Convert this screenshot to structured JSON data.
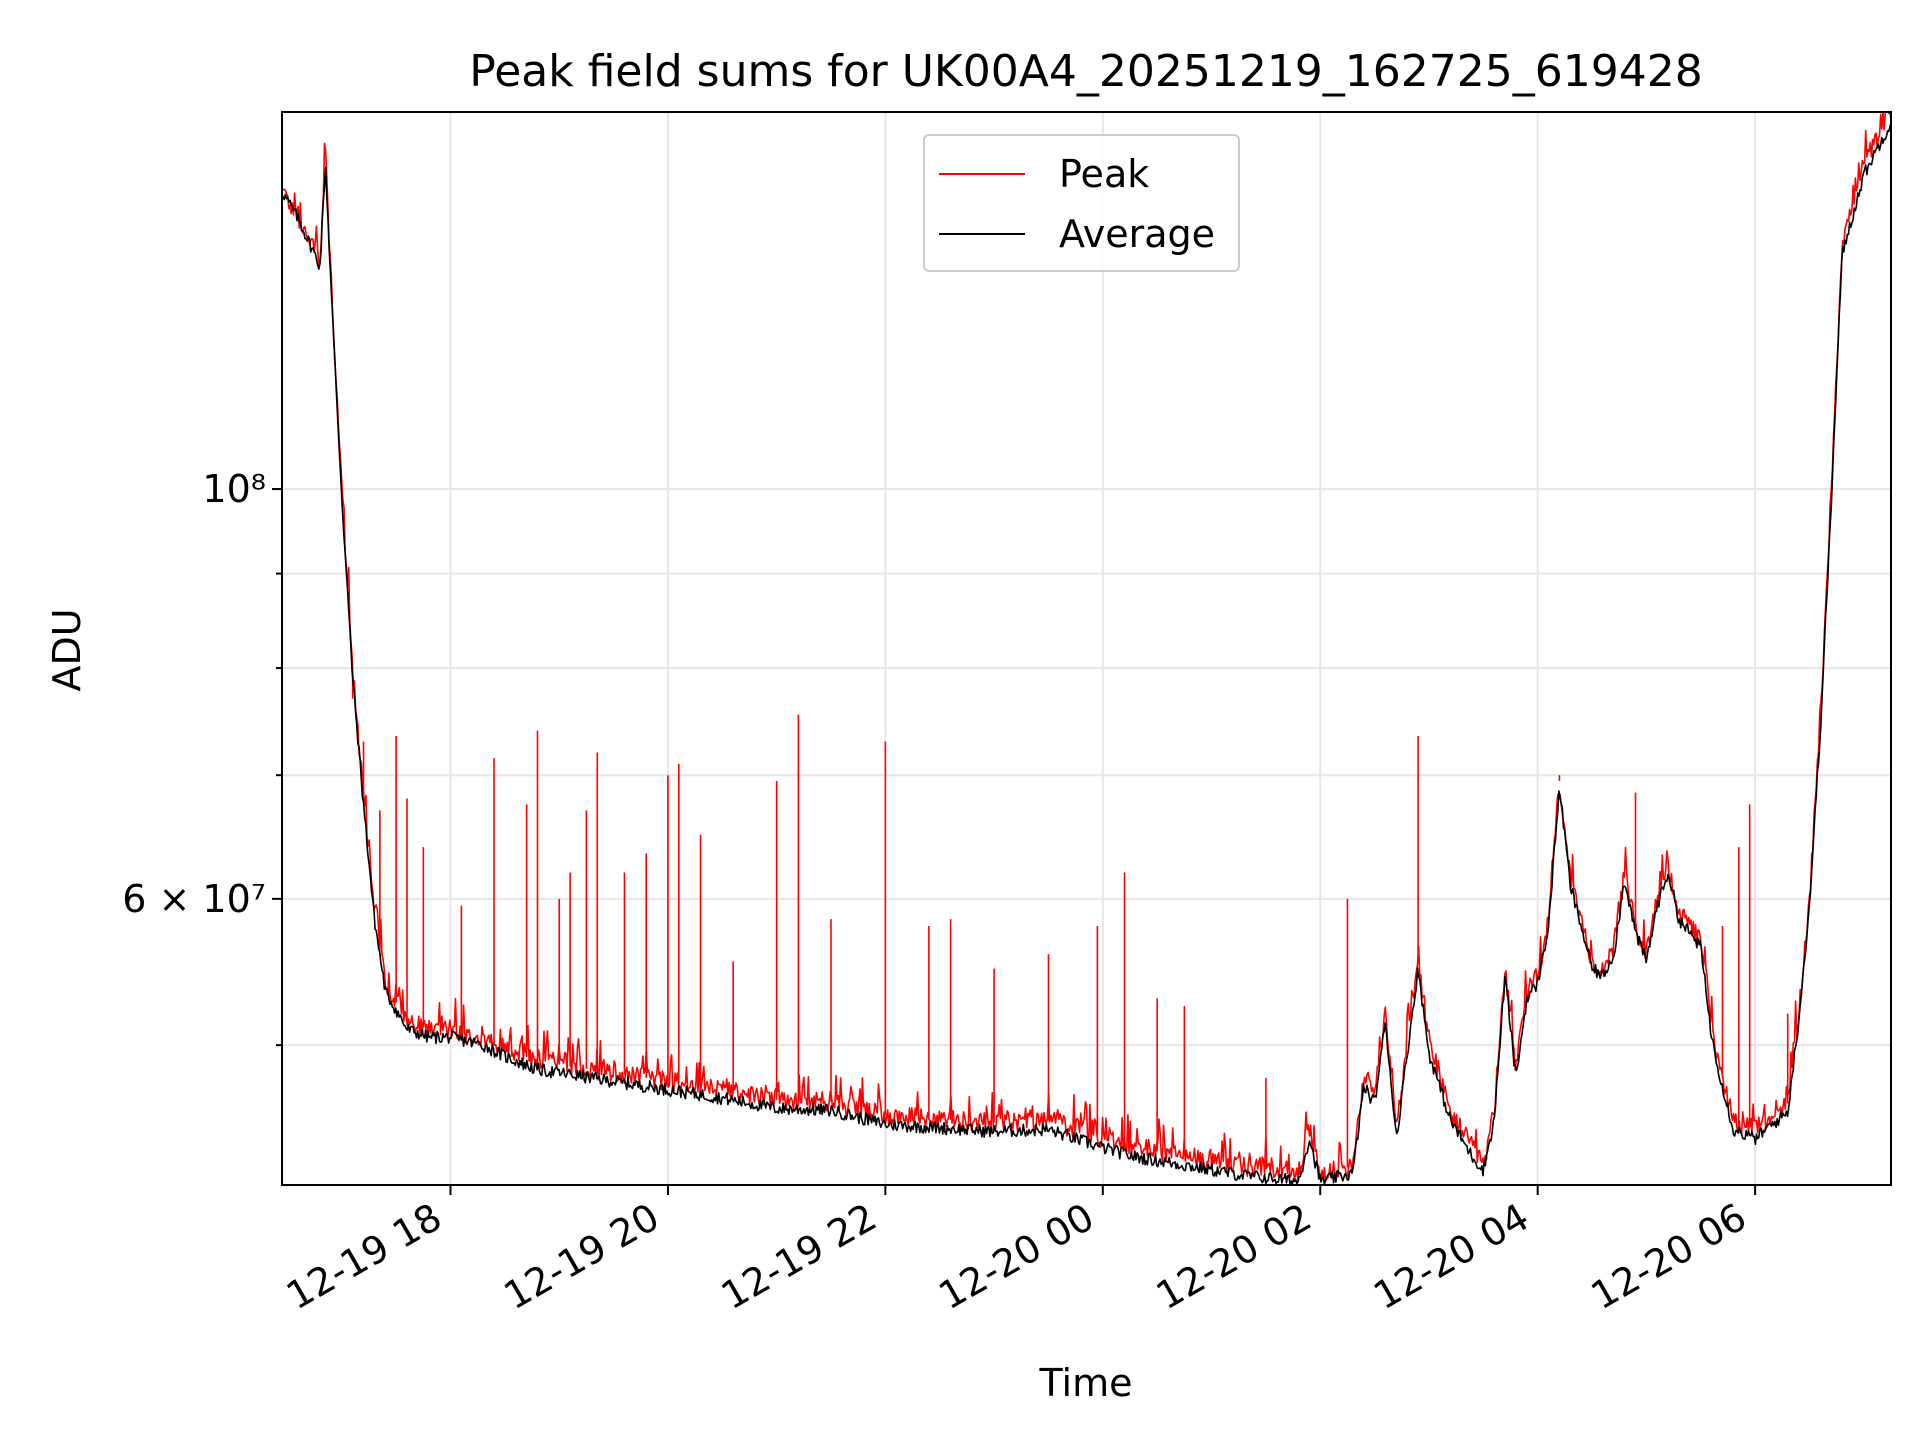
{
  "chart_data": {
    "type": "line",
    "title": "Peak field sums for UK00A4_20251219_162725_619428",
    "xlabel": "Time",
    "ylabel": "ADU",
    "yscale": "log",
    "ylim": [
      42000000,
      160000000
    ],
    "xlim_hours": [
      16.45,
      31.25
    ],
    "grid": true,
    "legend_position": "upper-center",
    "x_ticks": [
      {
        "hour": 18,
        "label": "12-19 18"
      },
      {
        "hour": 20,
        "label": "12-19 20"
      },
      {
        "hour": 22,
        "label": "12-19 22"
      },
      {
        "hour": 24,
        "label": "12-20 00"
      },
      {
        "hour": 26,
        "label": "12-20 02"
      },
      {
        "hour": 28,
        "label": "12-20 04"
      },
      {
        "hour": 30,
        "label": "12-20 06"
      }
    ],
    "y_major_ticks": [
      {
        "value": 60000000,
        "label": "6 × 10⁷"
      },
      {
        "value": 100000000,
        "label": "10⁸"
      }
    ],
    "y_minor_ticks": [
      50000000,
      70000000,
      80000000,
      90000000
    ],
    "series": [
      {
        "name": "Peak",
        "color": "#ff0000",
        "baseline": [
          [
            16.45,
            145000000
          ],
          [
            16.6,
            140000000
          ],
          [
            16.75,
            135000000
          ],
          [
            16.8,
            133000000
          ],
          [
            16.85,
            153000000
          ],
          [
            16.9,
            130000000
          ],
          [
            17.0,
            100000000
          ],
          [
            17.1,
            80000000
          ],
          [
            17.2,
            68000000
          ],
          [
            17.3,
            59000000
          ],
          [
            17.4,
            54000000
          ],
          [
            17.6,
            51500000
          ],
          [
            17.8,
            51000000
          ],
          [
            18.0,
            51000000
          ],
          [
            18.3,
            50500000
          ],
          [
            18.5,
            49800000
          ],
          [
            18.8,
            49000000
          ],
          [
            19.0,
            48800000
          ],
          [
            19.5,
            48300000
          ],
          [
            20.0,
            47800000
          ],
          [
            20.5,
            47300000
          ],
          [
            21.0,
            46700000
          ],
          [
            21.5,
            46600000
          ],
          [
            22.0,
            45800000
          ],
          [
            22.5,
            45600000
          ],
          [
            23.0,
            45400000
          ],
          [
            23.5,
            45500000
          ],
          [
            24.0,
            44500000
          ],
          [
            24.3,
            44000000
          ],
          [
            24.8,
            43500000
          ],
          [
            25.3,
            43000000
          ],
          [
            25.8,
            42600000
          ],
          [
            25.9,
            45000000
          ],
          [
            26.0,
            42600000
          ],
          [
            26.3,
            43000000
          ],
          [
            26.4,
            48000000
          ],
          [
            26.5,
            47000000
          ],
          [
            26.6,
            52000000
          ],
          [
            26.7,
            45000000
          ],
          [
            26.9,
            55500000
          ],
          [
            27.0,
            50000000
          ],
          [
            27.2,
            46000000
          ],
          [
            27.4,
            44000000
          ],
          [
            27.5,
            43000000
          ],
          [
            27.6,
            46000000
          ],
          [
            27.7,
            55000000
          ],
          [
            27.8,
            48500000
          ],
          [
            27.9,
            53500000
          ],
          [
            28.0,
            54500000
          ],
          [
            28.1,
            58500000
          ],
          [
            28.2,
            69500000
          ],
          [
            28.3,
            61500000
          ],
          [
            28.4,
            58500000
          ],
          [
            28.5,
            55500000
          ],
          [
            28.6,
            55000000
          ],
          [
            28.7,
            56500000
          ],
          [
            28.8,
            62000000
          ],
          [
            28.9,
            58000000
          ],
          [
            29.0,
            56000000
          ],
          [
            29.1,
            60000000
          ],
          [
            29.2,
            62500000
          ],
          [
            29.3,
            59000000
          ],
          [
            29.5,
            57000000
          ],
          [
            29.6,
            51000000
          ],
          [
            29.7,
            48000000
          ],
          [
            29.8,
            45500000
          ],
          [
            30.0,
            45000000
          ],
          [
            30.2,
            46000000
          ],
          [
            30.3,
            46500000
          ],
          [
            30.4,
            52000000
          ],
          [
            30.5,
            60000000
          ],
          [
            30.6,
            75000000
          ],
          [
            30.7,
            100000000
          ],
          [
            30.8,
            136000000
          ],
          [
            31.0,
            150000000
          ],
          [
            31.25,
            160000000
          ]
        ],
        "spikes": [
          [
            17.1,
            77000000
          ],
          [
            17.2,
            73000000
          ],
          [
            17.35,
            67000000
          ],
          [
            17.5,
            73500000
          ],
          [
            17.6,
            68000000
          ],
          [
            17.75,
            64000000
          ],
          [
            18.1,
            59500000
          ],
          [
            18.4,
            71500000
          ],
          [
            18.7,
            67500000
          ],
          [
            18.8,
            74000000
          ],
          [
            19.0,
            60000000
          ],
          [
            19.1,
            62000000
          ],
          [
            19.25,
            67000000
          ],
          [
            19.35,
            72000000
          ],
          [
            19.6,
            62000000
          ],
          [
            19.8,
            63500000
          ],
          [
            20.0,
            70000000
          ],
          [
            20.1,
            71000000
          ],
          [
            20.3,
            65000000
          ],
          [
            20.6,
            55500000
          ],
          [
            21.0,
            69500000
          ],
          [
            21.2,
            75500000
          ],
          [
            21.5,
            58500000
          ],
          [
            22.0,
            73000000
          ],
          [
            22.4,
            58000000
          ],
          [
            22.6,
            58500000
          ],
          [
            23.0,
            55000000
          ],
          [
            23.5,
            56000000
          ],
          [
            23.95,
            58000000
          ],
          [
            24.2,
            62000000
          ],
          [
            24.5,
            53000000
          ],
          [
            24.75,
            52500000
          ],
          [
            25.5,
            48000000
          ],
          [
            26.25,
            60000000
          ],
          [
            26.9,
            73500000
          ],
          [
            28.2,
            70000000
          ],
          [
            28.9,
            68500000
          ],
          [
            29.7,
            58000000
          ],
          [
            29.85,
            64000000
          ],
          [
            29.95,
            67500000
          ],
          [
            30.3,
            52000000
          ]
        ]
      },
      {
        "name": "Average",
        "color": "#000000",
        "baseline": [
          [
            16.45,
            145000000
          ],
          [
            16.6,
            140000000
          ],
          [
            16.75,
            134000000
          ],
          [
            16.8,
            132000000
          ],
          [
            16.85,
            150000000
          ],
          [
            16.9,
            129000000
          ],
          [
            17.0,
            99000000
          ],
          [
            17.1,
            79000000
          ],
          [
            17.2,
            67500000
          ],
          [
            17.3,
            58500000
          ],
          [
            17.4,
            53500000
          ],
          [
            17.6,
            51000000
          ],
          [
            17.8,
            50500000
          ],
          [
            18.0,
            50500000
          ],
          [
            18.3,
            50000000
          ],
          [
            18.5,
            49300000
          ],
          [
            18.8,
            48500000
          ],
          [
            19.0,
            48300000
          ],
          [
            19.5,
            47800000
          ],
          [
            20.0,
            47300000
          ],
          [
            20.5,
            46800000
          ],
          [
            21.0,
            46200000
          ],
          [
            21.5,
            46100000
          ],
          [
            22.0,
            45300000
          ],
          [
            22.5,
            45100000
          ],
          [
            23.0,
            44900000
          ],
          [
            23.5,
            45000000
          ],
          [
            24.0,
            44000000
          ],
          [
            24.3,
            43500000
          ],
          [
            24.8,
            43000000
          ],
          [
            25.3,
            42500000
          ],
          [
            25.8,
            42200000
          ],
          [
            25.9,
            44500000
          ],
          [
            26.0,
            42200000
          ],
          [
            26.3,
            42600000
          ],
          [
            26.4,
            47500000
          ],
          [
            26.5,
            46500000
          ],
          [
            26.6,
            51500000
          ],
          [
            26.7,
            44500000
          ],
          [
            26.9,
            55000000
          ],
          [
            27.0,
            49500000
          ],
          [
            27.2,
            45500000
          ],
          [
            27.4,
            43500000
          ],
          [
            27.5,
            42800000
          ],
          [
            27.6,
            45500000
          ],
          [
            27.7,
            54500000
          ],
          [
            27.8,
            48000000
          ],
          [
            27.9,
            53000000
          ],
          [
            28.0,
            54000000
          ],
          [
            28.1,
            58000000
          ],
          [
            28.2,
            69000000
          ],
          [
            28.3,
            61000000
          ],
          [
            28.4,
            58000000
          ],
          [
            28.5,
            55000000
          ],
          [
            28.6,
            54500000
          ],
          [
            28.7,
            56000000
          ],
          [
            28.8,
            61500000
          ],
          [
            28.9,
            57500000
          ],
          [
            29.0,
            55500000
          ],
          [
            29.1,
            59500000
          ],
          [
            29.2,
            62000000
          ],
          [
            29.3,
            58500000
          ],
          [
            29.5,
            56500000
          ],
          [
            29.6,
            50500000
          ],
          [
            29.7,
            47500000
          ],
          [
            29.8,
            45000000
          ],
          [
            30.0,
            44500000
          ],
          [
            30.2,
            45500000
          ],
          [
            30.3,
            46000000
          ],
          [
            30.4,
            51500000
          ],
          [
            30.5,
            59500000
          ],
          [
            30.6,
            74000000
          ],
          [
            30.7,
            98000000
          ],
          [
            30.8,
            134000000
          ],
          [
            31.0,
            148000000
          ],
          [
            31.25,
            158000000
          ]
        ]
      }
    ]
  }
}
